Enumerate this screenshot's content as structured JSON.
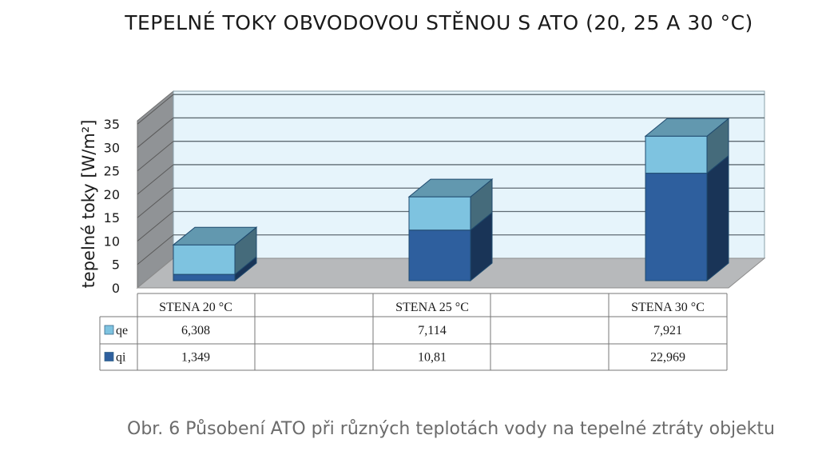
{
  "chart_data": {
    "type": "bar",
    "stacked": true,
    "three_d": true,
    "title": "TEPELNÉ TOKY OBVODOVOU STĚNOU S ATO (20, 25 A 30 °C)",
    "ylabel": "tepelné toky [W/m²]",
    "xlabel": "",
    "ylim": [
      0,
      35
    ],
    "yticks": [
      "0",
      "5",
      "10",
      "15",
      "20",
      "25",
      "30",
      "35"
    ],
    "grid": true,
    "categories": [
      "STENA 20 °C",
      "STENA 25 °C",
      "STENA 30 °C"
    ],
    "series": [
      {
        "name": "qi",
        "values": [
          1.349,
          10.81,
          22.969
        ],
        "labels": [
          "1,349",
          "10,81",
          "22,969"
        ],
        "color": "#2e5f9e"
      },
      {
        "name": "qe",
        "values": [
          6.308,
          7.114,
          7.921
        ],
        "labels": [
          "6,308",
          "7,114",
          "7,921"
        ],
        "color": "#7ec3e0"
      }
    ],
    "legend_placement": "data-table"
  },
  "caption": "Obr. 6 Působení ATO při různých teplotách vody na tepelné ztráty objektu",
  "colors": {
    "wall": "#e6f4fb",
    "side_wall": "#909396",
    "floor": "#b7b9bb",
    "grid": "#5f6b73"
  }
}
